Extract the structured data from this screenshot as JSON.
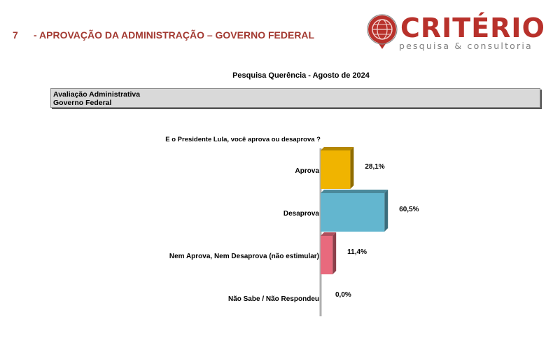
{
  "header": {
    "section_number": "7",
    "section_title": "- APROVAÇÃO DA ADMINISTRAÇÃO – GOVERNO FEDERAL",
    "title_color": "#a33a32"
  },
  "logo": {
    "name": "CRITÉRIO",
    "subtitle": "pesquisa & consultoria",
    "icon": "globe-pin-icon",
    "name_color": "#b8312b",
    "subtitle_color": "#7f7f7f"
  },
  "survey_title": "Pesquisa Querência - Agosto de 2024",
  "section_box": {
    "line1": "Avaliação Administrativa",
    "line2": "Governo Federal"
  },
  "chart_data": {
    "type": "bar",
    "orientation": "horizontal",
    "title": "E o Presidente Lula, você aprova ou desaprova ?",
    "categories": [
      "Aprova",
      "Desaprova",
      "Nem Aprova, Nem Desaprova (não estimular)",
      "Não Sabe / Não Respondeu"
    ],
    "values": [
      28.1,
      60.5,
      11.4,
      0.0
    ],
    "value_labels": [
      "28,1%",
      "60,5%",
      "11,4%",
      "0,0%"
    ],
    "colors": [
      "#f0b400",
      "#63b6cf",
      "#e86a7d",
      "#b0b0b0"
    ],
    "xlim": [
      0,
      100
    ],
    "xlabel": "",
    "ylabel": "",
    "grid": false,
    "legend": "none"
  }
}
